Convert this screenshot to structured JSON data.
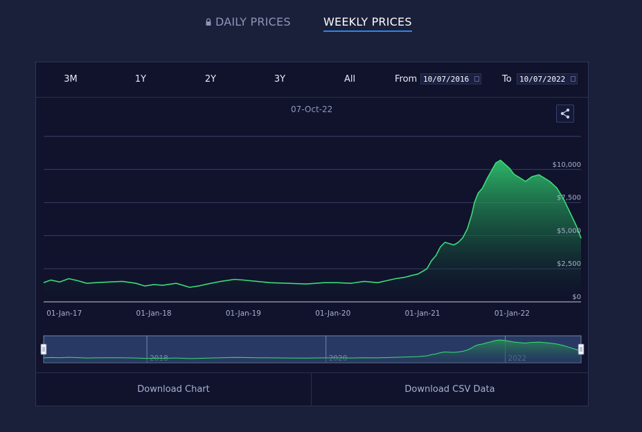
{
  "tabs": {
    "daily_label": "DAILY PRICES",
    "weekly_label": "WEEKLY PRICES",
    "active": "weekly"
  },
  "toolbar": {
    "ranges": [
      "3M",
      "1Y",
      "2Y",
      "3Y",
      "All"
    ],
    "from_label": "From",
    "from_value": "10/07/2016",
    "to_label": "To",
    "to_value": "10/07/2022"
  },
  "chart": {
    "hover_date": "07-Oct-22"
  },
  "footer": {
    "download_chart_label": "Download Chart",
    "download_csv_label": "Download CSV Data"
  },
  "colors": {
    "accent": "#2f86e8",
    "line": "#3ddc7a",
    "background": "#1a1f3a",
    "panel": "#10132b"
  },
  "chart_data": {
    "type": "area",
    "ylim": [
      0,
      12500
    ],
    "yticks": [
      0,
      2500,
      5000,
      7500,
      10000
    ],
    "ytick_labels": [
      "$0",
      "$2,500",
      "$5,000",
      "$7,500",
      "$10,000"
    ],
    "xlim": [
      2016.77,
      2022.77
    ],
    "xticks": [
      2017.0,
      2018.0,
      2019.0,
      2020.0,
      2021.0,
      2022.0
    ],
    "xtick_labels": [
      "01-Jan-17",
      "01-Jan-18",
      "01-Jan-19",
      "01-Jan-20",
      "01-Jan-21",
      "01-Jan-22"
    ],
    "navigator_labels": [
      "2018",
      "2020",
      "2022"
    ],
    "navigator_ticks": [
      2018.0,
      2020.0,
      2022.0
    ],
    "series": [
      {
        "x": [
          2016.77,
          2016.85,
          2016.95,
          2017.05,
          2017.15,
          2017.25,
          2017.35,
          2017.5,
          2017.65,
          2017.8,
          2017.9,
          2018.0,
          2018.1,
          2018.25,
          2018.4,
          2018.5,
          2018.6,
          2018.75,
          2018.9,
          2019.0,
          2019.15,
          2019.3,
          2019.5,
          2019.7,
          2019.9,
          2020.05,
          2020.2,
          2020.35,
          2020.5,
          2020.6,
          2020.7,
          2020.8,
          2020.88,
          2020.95,
          2021.0,
          2021.05,
          2021.1,
          2021.15,
          2021.2,
          2021.25,
          2021.3,
          2021.35,
          2021.4,
          2021.45,
          2021.5,
          2021.55,
          2021.58,
          2021.62,
          2021.67,
          2021.72,
          2021.77,
          2021.82,
          2021.87,
          2021.92,
          2021.97,
          2022.02,
          2022.08,
          2022.15,
          2022.22,
          2022.3,
          2022.36,
          2022.42,
          2022.5,
          2022.58,
          2022.65,
          2022.72,
          2022.77
        ],
        "y": [
          1450,
          1650,
          1500,
          1750,
          1600,
          1400,
          1450,
          1500,
          1550,
          1400,
          1200,
          1300,
          1250,
          1400,
          1100,
          1200,
          1350,
          1550,
          1700,
          1650,
          1550,
          1450,
          1400,
          1350,
          1450,
          1450,
          1400,
          1550,
          1450,
          1600,
          1750,
          1850,
          2000,
          2100,
          2300,
          2500,
          3100,
          3500,
          4150,
          4500,
          4400,
          4300,
          4500,
          4850,
          5500,
          6600,
          7500,
          8200,
          8600,
          9300,
          9900,
          10500,
          10700,
          10400,
          10100,
          9650,
          9400,
          9100,
          9450,
          9600,
          9350,
          9100,
          8600,
          7700,
          6700,
          5700,
          4800
        ]
      }
    ]
  }
}
